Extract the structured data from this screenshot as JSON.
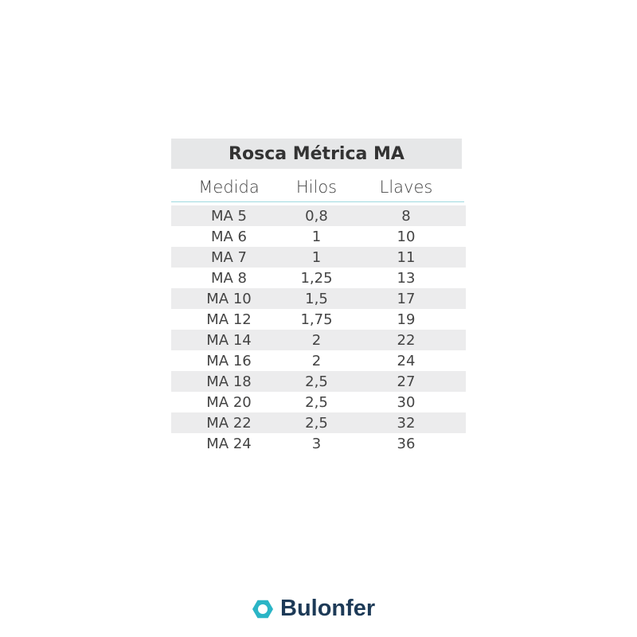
{
  "table": {
    "title": "Rosca Métrica MA",
    "headers": [
      "Medida",
      "Hilos",
      "Llaves"
    ],
    "rows": [
      [
        "MA 5",
        "0,8",
        "8"
      ],
      [
        "MA 6",
        "1",
        "10"
      ],
      [
        "MA 7",
        "1",
        "11"
      ],
      [
        "MA 8",
        "1,25",
        "13"
      ],
      [
        "MA 10",
        "1,5",
        "17"
      ],
      [
        "MA 12",
        "1,75",
        "19"
      ],
      [
        "MA 14",
        "2",
        "22"
      ],
      [
        "MA 16",
        "2",
        "24"
      ],
      [
        "MA 18",
        "2,5",
        "27"
      ],
      [
        "MA 20",
        "2,5",
        "30"
      ],
      [
        "MA 22",
        "2,5",
        "32"
      ],
      [
        "MA 24",
        "3",
        "36"
      ]
    ]
  },
  "brand": {
    "name": "Bulonfer",
    "icon": "hexagon-ring-icon",
    "accent": "#2bb5c6",
    "text_color": "#1d3a57"
  }
}
